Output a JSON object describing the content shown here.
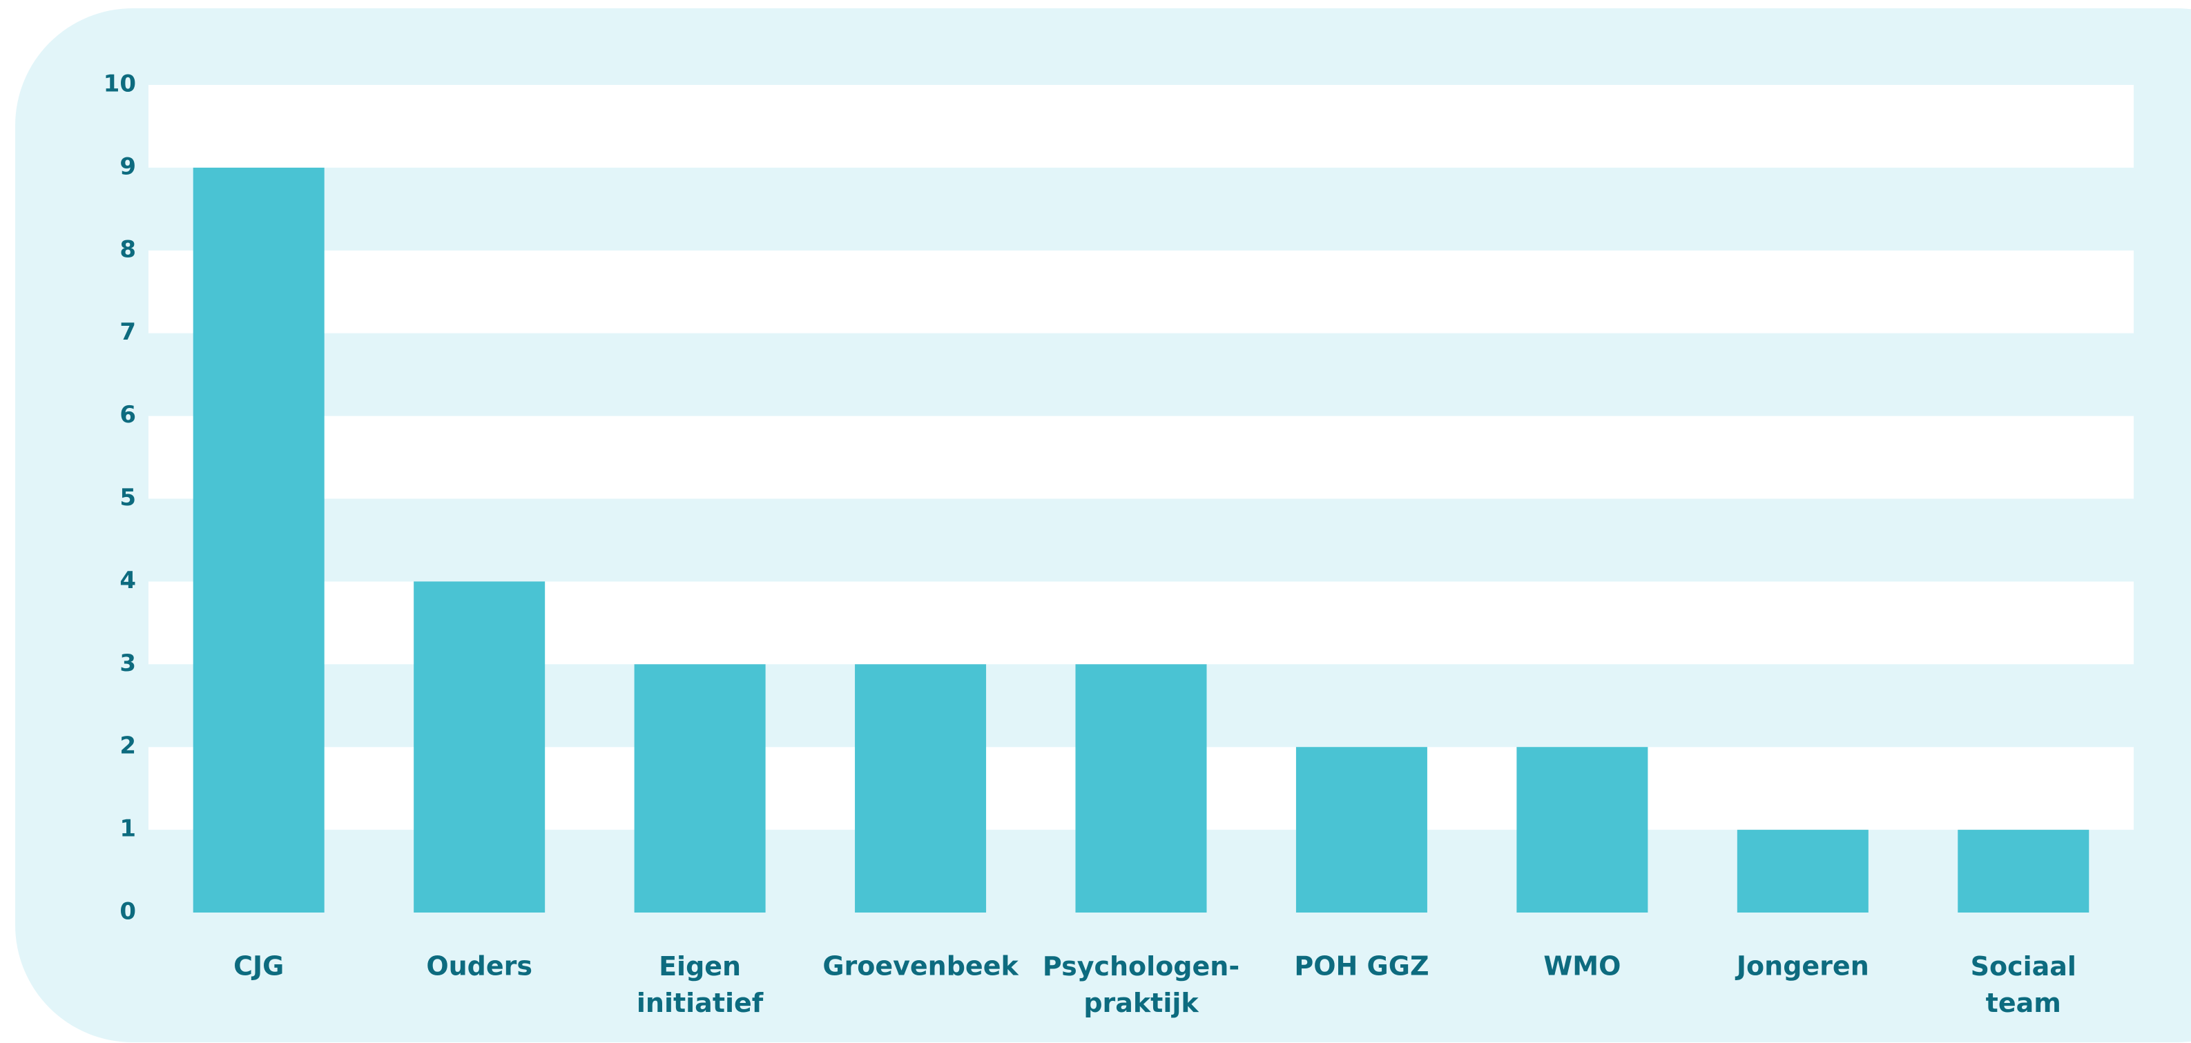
{
  "chart_data": {
    "type": "bar",
    "categories": [
      "CJG",
      "Ouders",
      "Eigen\ninitiatief",
      "Groevenbeek",
      "Psychologen-\npraktijk",
      "POH GGZ",
      "WMO",
      "Jongeren",
      "Sociaal\nteam"
    ],
    "values": [
      9,
      4,
      3,
      3,
      3,
      2,
      2,
      1,
      1
    ],
    "color": "#4ac3d3",
    "ylim": [
      0,
      10
    ],
    "yticks": [
      0,
      1,
      2,
      3,
      4,
      5,
      6,
      7,
      8,
      9,
      10
    ],
    "grid": "bands",
    "band_colors": [
      "#e2f5f9",
      "#ffffff"
    ]
  }
}
